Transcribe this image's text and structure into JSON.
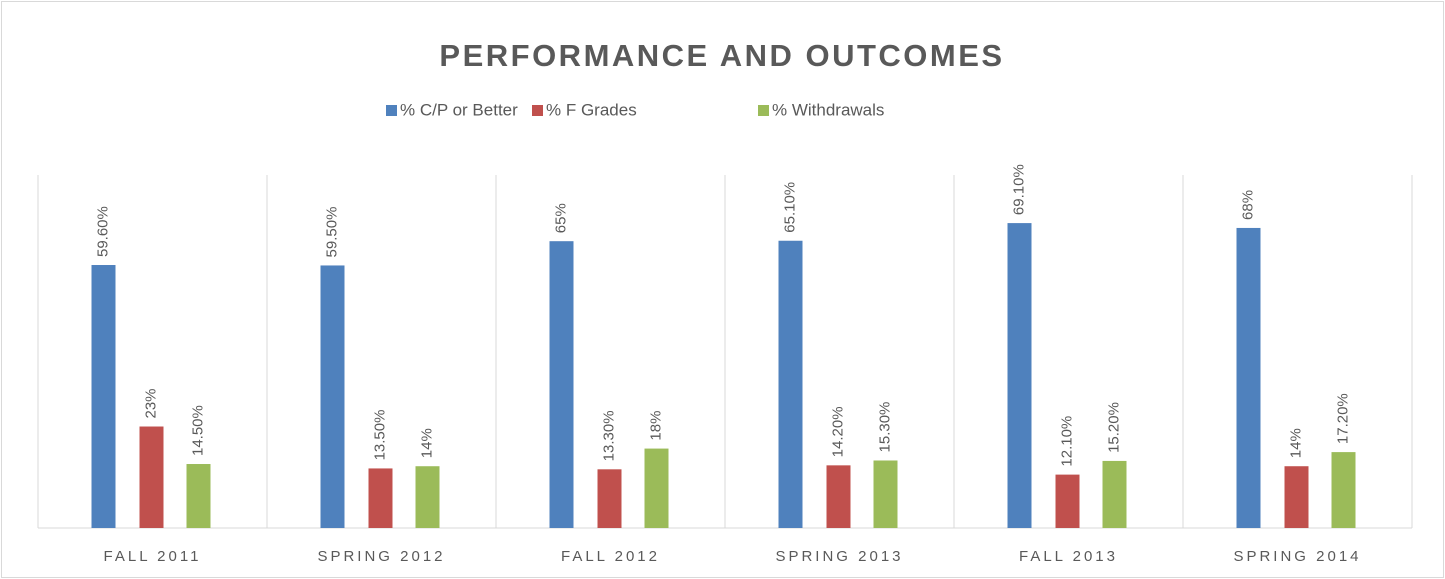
{
  "chart_data": {
    "type": "bar",
    "title": "PERFORMANCE AND OUTCOMES",
    "categories": [
      "FALL 2011",
      "SPRING 2012",
      "FALL 2012",
      "SPRING 2013",
      "FALL 2013",
      "SPRING 2014"
    ],
    "series": [
      {
        "name": "% C/P or Better",
        "color": "#4f81bd",
        "values": [
          59.6,
          59.5,
          65,
          65.1,
          69.1,
          68
        ],
        "value_labels": [
          "59.60%",
          "59.50%",
          "65%",
          "65.10%",
          "69.10%",
          "68%"
        ]
      },
      {
        "name": "% F Grades",
        "color": "#c0504d",
        "values": [
          23,
          13.5,
          13.3,
          14.2,
          12.1,
          14
        ],
        "value_labels": [
          "23%",
          "13.50%",
          "13.30%",
          "14.20%",
          "12.10%",
          "14%"
        ]
      },
      {
        "name": "% Withdrawals",
        "color": "#9bbb59",
        "values": [
          14.5,
          14,
          18,
          15.3,
          15.2,
          17.2
        ],
        "value_labels": [
          "14.50%",
          "14%",
          "18%",
          "15.30%",
          "15.20%",
          "17.20%"
        ]
      }
    ],
    "ylim": [
      0,
      80
    ],
    "legend": "top",
    "grid": false
  }
}
